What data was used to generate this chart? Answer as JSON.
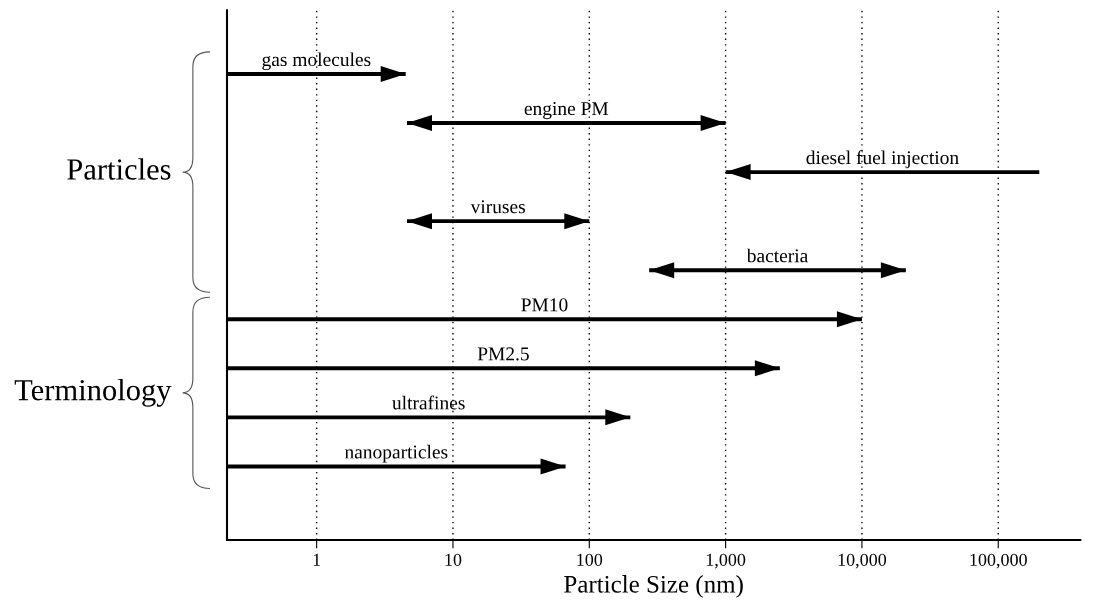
{
  "chart_data": {
    "type": "bar",
    "orientation": "horizontal",
    "log": "x",
    "grid": "x",
    "categories": [
      "gas molecules",
      "engine PM",
      "diesel fuel injection",
      "viruses",
      "bacteria",
      "PM10",
      "PM2.5",
      "ultrafines",
      "nanoparticles"
    ],
    "base": [
      0.22,
      4.6,
      1000,
      4.6,
      275,
      0.22,
      0.22,
      0.22,
      0.22
    ],
    "values": [
      4.28,
      995.4,
      199000,
      95.4,
      20725,
      9999.78,
      2499.78,
      199.78,
      66.78
    ],
    "color": "#000000",
    "xlim": [
      0.22,
      400000
    ],
    "xticks": [
      1,
      10,
      100,
      {
        "value": 1000,
        "label": "1,000"
      },
      {
        "value": 10000,
        "label": "10,000"
      },
      {
        "value": 100000,
        "label": "100,000"
      }
    ],
    "xlabel": "Particle Size (nm)",
    "annotations": [
      "Particles",
      "Terminology"
    ]
  }
}
